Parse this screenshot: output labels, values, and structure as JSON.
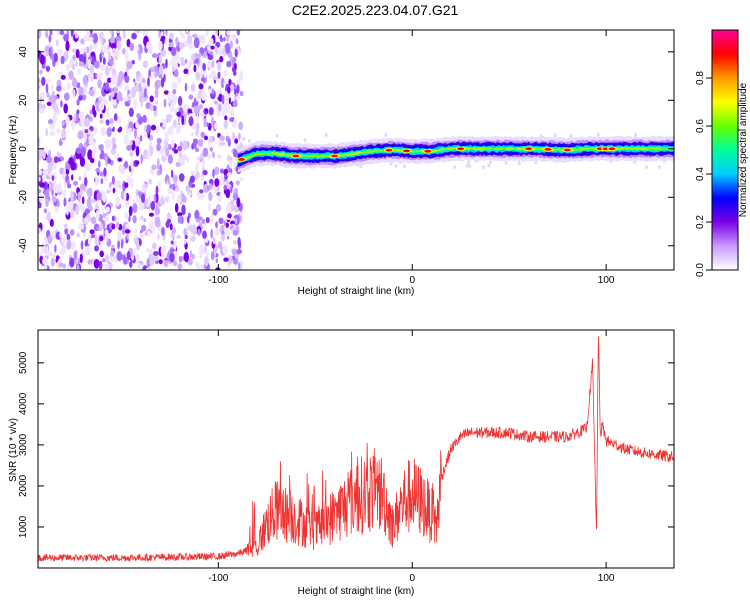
{
  "title": "C2E2.2025.223.04.07.G21",
  "chart_data": [
    {
      "type": "heatmap",
      "xlabel": "Height of straight line (km)",
      "ylabel": "Frequency (Hz)",
      "xlim": [
        -193,
        135
      ],
      "ylim": [
        -50,
        49
      ],
      "xticks": [
        -100,
        0,
        100
      ],
      "yticks": [
        -40,
        -20,
        0,
        20,
        40
      ],
      "grid": false,
      "noise_region_x": [
        -193,
        -88
      ],
      "ridge": {
        "x": [
          -90,
          -80,
          -70,
          -60,
          -50,
          -40,
          -30,
          -20,
          -10,
          0,
          10,
          20,
          40,
          60,
          80,
          90,
          100,
          110,
          120,
          135
        ],
        "frequency": [
          -5,
          -2,
          -2,
          -3,
          -3,
          -3,
          -2,
          -1,
          -0.5,
          -1,
          -1,
          0,
          0,
          0,
          -0.5,
          0,
          0,
          0,
          0,
          0
        ]
      },
      "colorbar": {
        "label": "Normalized spectral amplitude",
        "range": [
          0,
          1
        ],
        "ticks": [
          0.0,
          0.2,
          0.4,
          0.6,
          0.8
        ],
        "colors": [
          "#ffffff",
          "#cc99ff",
          "#7a00e6",
          "#0000ff",
          "#00ccff",
          "#00ff99",
          "#66ff00",
          "#ffff00",
          "#ff9900",
          "#ff0000",
          "#ff0099"
        ]
      }
    },
    {
      "type": "line",
      "xlabel": "Height of straight line (km)",
      "ylabel": "SNR (10 * v/v)",
      "xlim": [
        -193,
        135
      ],
      "ylim": [
        0,
        5800
      ],
      "xticks": [
        -100,
        0,
        100
      ],
      "yticks": [
        1000,
        2000,
        3000,
        4000,
        5000
      ],
      "grid": false,
      "series_color": "#ee3333",
      "series": [
        {
          "x": [
            -193,
            -150,
            -100,
            -90,
            -80,
            -75,
            -70,
            -60,
            -50,
            -40,
            -30,
            -20,
            -15,
            -10,
            -5,
            0,
            5,
            10,
            12,
            15,
            20,
            25,
            30,
            40,
            50,
            60,
            70,
            80,
            90,
            93,
            95,
            96,
            97,
            98,
            100,
            110,
            120,
            135
          ],
          "values": [
            250,
            250,
            280,
            350,
            500,
            1100,
            1400,
            1200,
            900,
            1300,
            1700,
            1900,
            1800,
            1000,
            1600,
            1800,
            1600,
            1300,
            800,
            2200,
            2900,
            3200,
            3300,
            3300,
            3300,
            3200,
            3200,
            3200,
            3400,
            5000,
            800,
            5800,
            3200,
            3500,
            3100,
            2900,
            2800,
            2700
          ]
        }
      ]
    }
  ]
}
